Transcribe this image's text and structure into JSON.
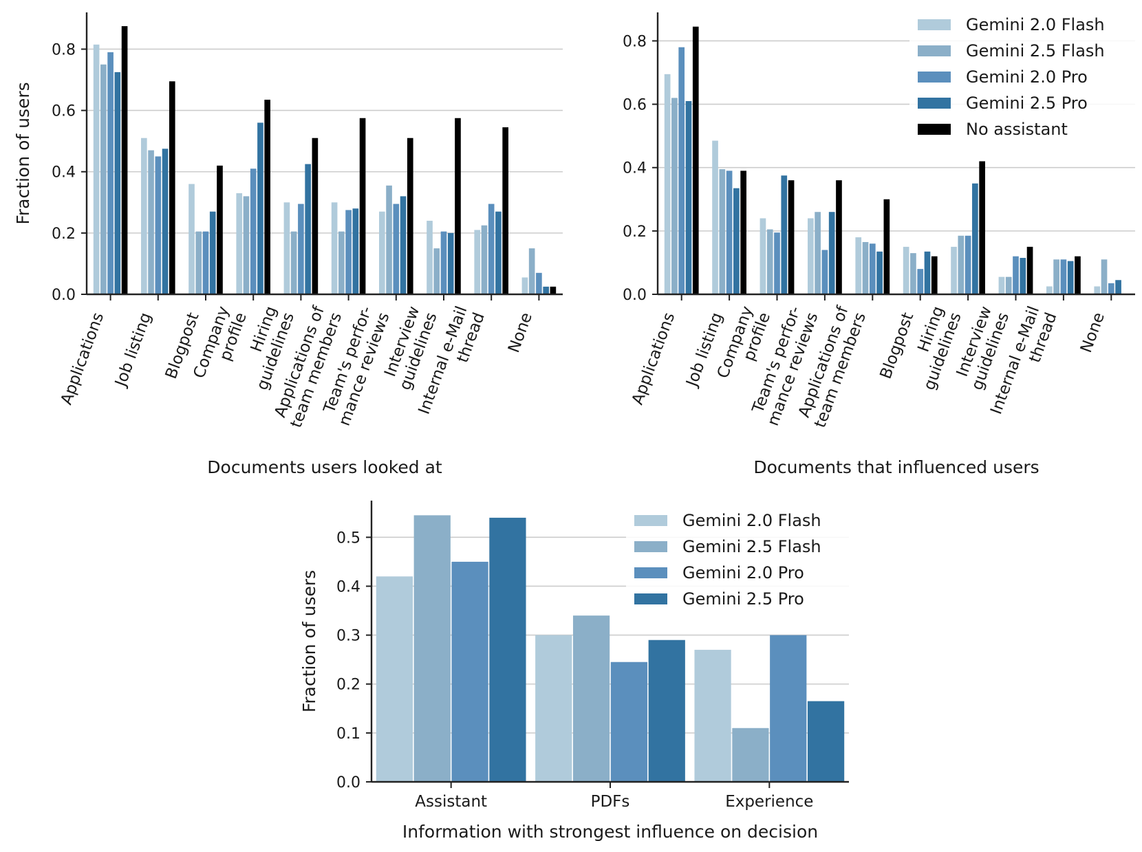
{
  "colors": {
    "Gemini 2.0 Flash": "#b0cbdb",
    "Gemini 2.5 Flash": "#8bafc8",
    "Gemini 2.0 Pro": "#5b8fbd",
    "Gemini 2.5 Pro": "#3273a1",
    "No assistant": "#000000",
    "grid": "#cccccc",
    "axis": "#222222"
  },
  "chart_data": [
    {
      "type": "bar",
      "xlabel": "Documents users looked at",
      "ylabel": "Fraction of users",
      "ylim": [
        0,
        0.92
      ],
      "yticks": [
        0.0,
        0.2,
        0.4,
        0.6,
        0.8
      ],
      "grid": true,
      "legend": "none",
      "categories": [
        [
          "Applications"
        ],
        [
          "Job listing"
        ],
        [
          "Blogpost"
        ],
        [
          "Company",
          "profile"
        ],
        [
          "Hiring",
          "guidelines"
        ],
        [
          "Applications of",
          "team members"
        ],
        [
          "Team's perfor-",
          "mance reviews"
        ],
        [
          "Interview",
          "guidelines"
        ],
        [
          "Internal e-Mail",
          "thread"
        ],
        [
          "None"
        ]
      ],
      "series": [
        {
          "name": "Gemini 2.0 Flash",
          "values": [
            0.815,
            0.51,
            0.36,
            0.33,
            0.3,
            0.3,
            0.27,
            0.24,
            0.21,
            0.055
          ]
        },
        {
          "name": "Gemini 2.5 Flash",
          "values": [
            0.75,
            0.47,
            0.205,
            0.32,
            0.205,
            0.205,
            0.355,
            0.15,
            0.225,
            0.15
          ]
        },
        {
          "name": "Gemini 2.0 Pro",
          "values": [
            0.79,
            0.45,
            0.205,
            0.41,
            0.295,
            0.275,
            0.295,
            0.205,
            0.295,
            0.07
          ]
        },
        {
          "name": "Gemini 2.5 Pro",
          "values": [
            0.725,
            0.475,
            0.27,
            0.56,
            0.425,
            0.28,
            0.32,
            0.2,
            0.27,
            0.025
          ]
        },
        {
          "name": "No assistant",
          "values": [
            0.875,
            0.695,
            0.42,
            0.635,
            0.51,
            0.575,
            0.51,
            0.575,
            0.545,
            0.025
          ]
        }
      ]
    },
    {
      "type": "bar",
      "xlabel": "Documents that influenced users",
      "ylabel": "",
      "ylim": [
        0,
        0.89
      ],
      "yticks": [
        0.0,
        0.2,
        0.4,
        0.6,
        0.8
      ],
      "grid": true,
      "legend": "top-right",
      "categories": [
        [
          "Applications"
        ],
        [
          "Job listing"
        ],
        [
          "Company",
          "profile"
        ],
        [
          "Team's perfor-",
          "mance reviews"
        ],
        [
          "Applications of",
          "team members"
        ],
        [
          "Blogpost"
        ],
        [
          "Hiring",
          "guidelines"
        ],
        [
          "Interview",
          "guidelines"
        ],
        [
          "Internal e-Mail",
          "thread"
        ],
        [
          "None"
        ]
      ],
      "series": [
        {
          "name": "Gemini 2.0 Flash",
          "values": [
            0.695,
            0.485,
            0.24,
            0.24,
            0.18,
            0.15,
            0.15,
            0.055,
            0.025,
            0.025
          ]
        },
        {
          "name": "Gemini 2.5 Flash",
          "values": [
            0.62,
            0.395,
            0.205,
            0.26,
            0.165,
            0.13,
            0.185,
            0.055,
            0.11,
            0.11
          ]
        },
        {
          "name": "Gemini 2.0 Pro",
          "values": [
            0.78,
            0.39,
            0.195,
            0.14,
            0.16,
            0.08,
            0.185,
            0.12,
            0.11,
            0.035
          ]
        },
        {
          "name": "Gemini 2.5 Pro",
          "values": [
            0.61,
            0.335,
            0.375,
            0.26,
            0.135,
            0.135,
            0.35,
            0.115,
            0.105,
            0.045
          ]
        },
        {
          "name": "No assistant",
          "values": [
            0.845,
            0.39,
            0.36,
            0.36,
            0.3,
            0.12,
            0.42,
            0.15,
            0.12,
            0.0
          ]
        }
      ]
    },
    {
      "type": "bar",
      "xlabel": "Information with strongest influence on decision",
      "ylabel": "Fraction of users",
      "ylim": [
        0,
        0.575
      ],
      "yticks": [
        0.0,
        0.1,
        0.2,
        0.3,
        0.4,
        0.5
      ],
      "grid": true,
      "legend": "top-right",
      "categories": [
        [
          "Assistant"
        ],
        [
          "PDFs"
        ],
        [
          "Experience"
        ]
      ],
      "series": [
        {
          "name": "Gemini 2.0 Flash",
          "values": [
            0.42,
            0.3,
            0.27
          ]
        },
        {
          "name": "Gemini 2.5 Flash",
          "values": [
            0.545,
            0.34,
            0.11
          ]
        },
        {
          "name": "Gemini 2.0 Pro",
          "values": [
            0.45,
            0.245,
            0.3
          ]
        },
        {
          "name": "Gemini 2.5 Pro",
          "values": [
            0.54,
            0.29,
            0.165
          ]
        }
      ]
    }
  ]
}
